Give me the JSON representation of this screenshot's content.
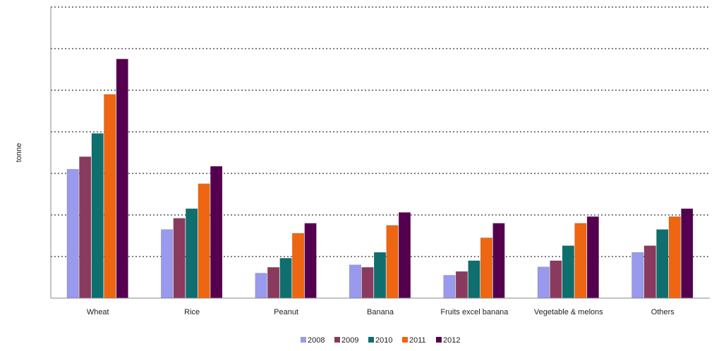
{
  "chart_data": {
    "type": "bar",
    "title": "",
    "xlabel": "",
    "ylabel": "tonne",
    "categories": [
      "Wheat",
      "Rice",
      "Peanut",
      "Banana",
      "Fruits excel banana",
      "Vegetable & melons",
      "Others"
    ],
    "ylim": [
      0,
      7
    ],
    "grid": true,
    "legend_position": "bottom",
    "series": [
      {
        "name": "2008",
        "color": "#9999ee",
        "values": [
          3.1,
          1.65,
          0.6,
          0.8,
          0.55,
          0.75,
          1.1
        ]
      },
      {
        "name": "2009",
        "color": "#8a3a5e",
        "values": [
          3.4,
          1.92,
          0.74,
          0.74,
          0.64,
          0.9,
          1.26
        ]
      },
      {
        "name": "2010",
        "color": "#0f6e6e",
        "values": [
          3.96,
          2.15,
          0.96,
          1.1,
          0.9,
          1.26,
          1.65
        ]
      },
      {
        "name": "2011",
        "color": "#ee6611",
        "values": [
          4.9,
          2.75,
          1.56,
          1.75,
          1.45,
          1.8,
          1.96
        ]
      },
      {
        "name": "2012",
        "color": "#55004f",
        "values": [
          5.75,
          3.17,
          1.8,
          2.06,
          1.8,
          1.96,
          2.15
        ]
      }
    ]
  }
}
